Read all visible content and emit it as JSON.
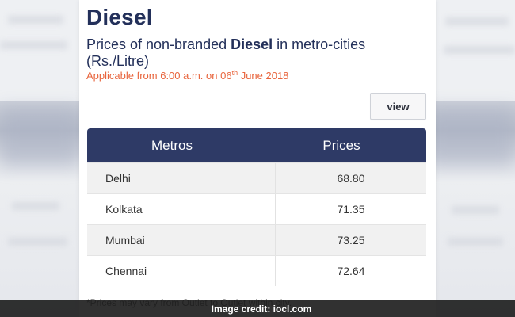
{
  "card": {
    "title": "Diesel",
    "subtitle_pre": "Prices of non-branded ",
    "subtitle_bold": "Diesel",
    "subtitle_post": " in metro-cities (Rs./Litre)",
    "applicable_pre": "Applicable from 6:00 a.m. on 06",
    "applicable_sup": "th",
    "applicable_post": " June 2018",
    "view_label": "view"
  },
  "table": {
    "headers": [
      "Metros",
      "Prices"
    ],
    "rows": [
      {
        "metro": "Delhi",
        "price": "68.80"
      },
      {
        "metro": "Kolkata",
        "price": "71.35"
      },
      {
        "metro": "Mumbai",
        "price": "73.25"
      },
      {
        "metro": "Chennai",
        "price": "72.64"
      }
    ]
  },
  "note": "*Prices may vary from Outlet to Outlet within city.",
  "credit": "Image credit: iocl.com",
  "colors": {
    "header_bg": "#2e3a66",
    "title": "#23305a",
    "accent": "#e8643c"
  }
}
